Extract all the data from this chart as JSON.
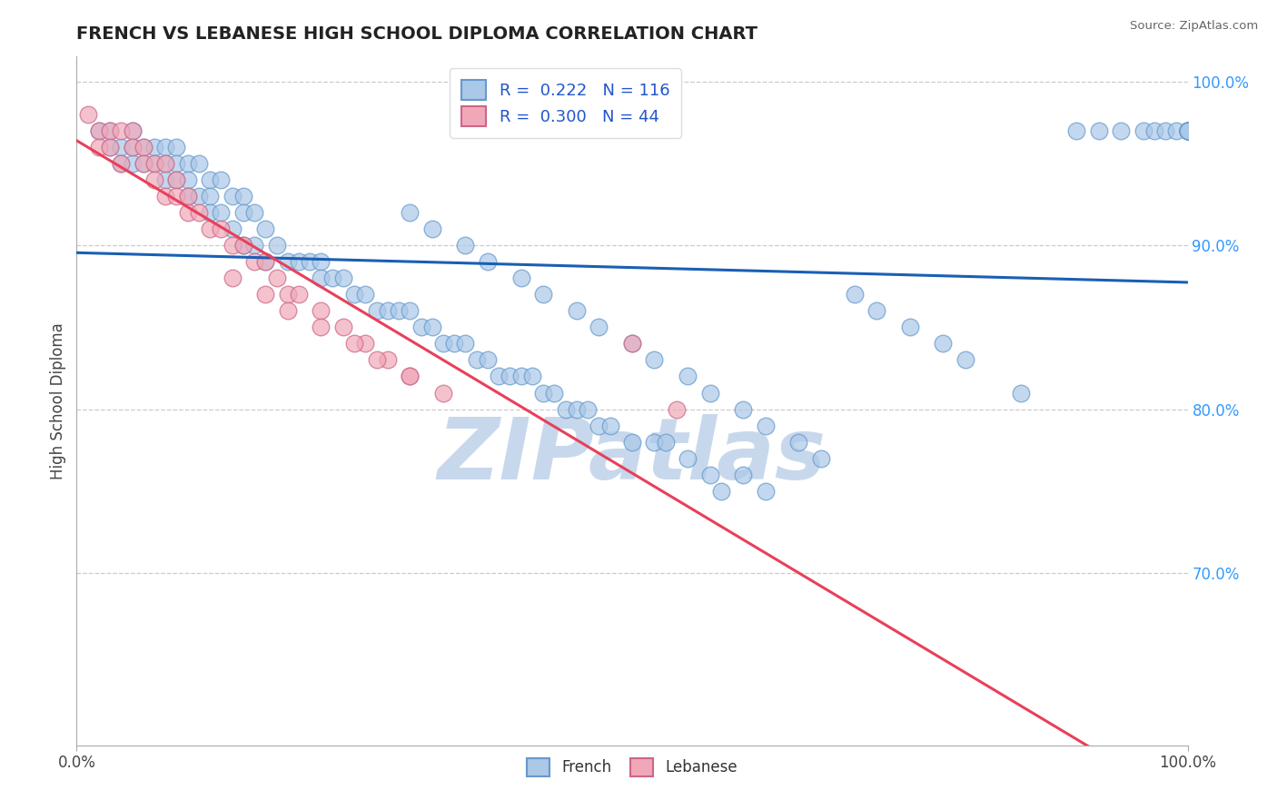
{
  "title": "FRENCH VS LEBANESE HIGH SCHOOL DIPLOMA CORRELATION CHART",
  "source": "Source: ZipAtlas.com",
  "ylabel": "High School Diploma",
  "right_yticks": [
    0.7,
    0.8,
    0.9,
    1.0
  ],
  "right_yticklabels": [
    "70.0%",
    "80.0%",
    "90.0%",
    "100.0%"
  ],
  "xlim": [
    0.0,
    1.0
  ],
  "ylim": [
    0.595,
    1.015
  ],
  "legend_french_R": "0.222",
  "legend_french_N": "116",
  "legend_lebanese_R": "0.300",
  "legend_lebanese_N": "44",
  "french_color": "#aac8e8",
  "lebanese_color": "#f0a8b8",
  "french_line_color": "#1a5fb4",
  "lebanese_line_color": "#e8405a",
  "watermark": "ZIPatlas",
  "watermark_color": "#c8d8ec",
  "french_x": [
    0.02,
    0.03,
    0.03,
    0.04,
    0.04,
    0.05,
    0.05,
    0.05,
    0.06,
    0.06,
    0.07,
    0.07,
    0.08,
    0.08,
    0.08,
    0.09,
    0.09,
    0.09,
    0.1,
    0.1,
    0.1,
    0.11,
    0.11,
    0.12,
    0.12,
    0.12,
    0.13,
    0.13,
    0.14,
    0.14,
    0.15,
    0.15,
    0.15,
    0.16,
    0.16,
    0.17,
    0.17,
    0.18,
    0.19,
    0.2,
    0.21,
    0.22,
    0.22,
    0.23,
    0.24,
    0.25,
    0.26,
    0.27,
    0.28,
    0.29,
    0.3,
    0.31,
    0.32,
    0.33,
    0.34,
    0.35,
    0.36,
    0.37,
    0.38,
    0.39,
    0.4,
    0.41,
    0.42,
    0.43,
    0.44,
    0.45,
    0.46,
    0.47,
    0.48,
    0.5,
    0.52,
    0.53,
    0.55,
    0.57,
    0.58,
    0.6,
    0.62,
    0.3,
    0.32,
    0.35,
    0.37,
    0.4,
    0.42,
    0.45,
    0.47,
    0.5,
    0.52,
    0.55,
    0.57,
    0.6,
    0.62,
    0.65,
    0.67,
    0.7,
    0.72,
    0.75,
    0.78,
    0.8,
    0.85,
    0.9,
    0.92,
    0.94,
    0.96,
    0.97,
    0.98,
    0.99,
    1.0,
    1.0,
    1.0,
    1.0,
    1.0,
    1.0,
    1.0,
    1.0,
    1.0,
    1.0
  ],
  "french_y": [
    0.97,
    0.96,
    0.97,
    0.96,
    0.95,
    0.97,
    0.96,
    0.95,
    0.96,
    0.95,
    0.96,
    0.95,
    0.96,
    0.95,
    0.94,
    0.96,
    0.95,
    0.94,
    0.95,
    0.94,
    0.93,
    0.95,
    0.93,
    0.94,
    0.93,
    0.92,
    0.94,
    0.92,
    0.93,
    0.91,
    0.93,
    0.92,
    0.9,
    0.92,
    0.9,
    0.91,
    0.89,
    0.9,
    0.89,
    0.89,
    0.89,
    0.89,
    0.88,
    0.88,
    0.88,
    0.87,
    0.87,
    0.86,
    0.86,
    0.86,
    0.86,
    0.85,
    0.85,
    0.84,
    0.84,
    0.84,
    0.83,
    0.83,
    0.82,
    0.82,
    0.82,
    0.82,
    0.81,
    0.81,
    0.8,
    0.8,
    0.8,
    0.79,
    0.79,
    0.78,
    0.78,
    0.78,
    0.77,
    0.76,
    0.75,
    0.76,
    0.75,
    0.92,
    0.91,
    0.9,
    0.89,
    0.88,
    0.87,
    0.86,
    0.85,
    0.84,
    0.83,
    0.82,
    0.81,
    0.8,
    0.79,
    0.78,
    0.77,
    0.87,
    0.86,
    0.85,
    0.84,
    0.83,
    0.81,
    0.97,
    0.97,
    0.97,
    0.97,
    0.97,
    0.97,
    0.97,
    0.97,
    0.97,
    0.97,
    0.97,
    0.97,
    0.97,
    0.97,
    0.97,
    0.97,
    0.97
  ],
  "lebanese_x": [
    0.01,
    0.02,
    0.02,
    0.03,
    0.03,
    0.04,
    0.04,
    0.05,
    0.05,
    0.06,
    0.06,
    0.07,
    0.07,
    0.08,
    0.08,
    0.09,
    0.09,
    0.1,
    0.1,
    0.11,
    0.12,
    0.13,
    0.14,
    0.15,
    0.16,
    0.17,
    0.18,
    0.19,
    0.2,
    0.22,
    0.24,
    0.26,
    0.28,
    0.3,
    0.14,
    0.17,
    0.19,
    0.22,
    0.25,
    0.27,
    0.3,
    0.33,
    0.5,
    0.54
  ],
  "lebanese_y": [
    0.98,
    0.97,
    0.96,
    0.97,
    0.96,
    0.97,
    0.95,
    0.97,
    0.96,
    0.96,
    0.95,
    0.95,
    0.94,
    0.95,
    0.93,
    0.94,
    0.93,
    0.93,
    0.92,
    0.92,
    0.91,
    0.91,
    0.9,
    0.9,
    0.89,
    0.89,
    0.88,
    0.87,
    0.87,
    0.86,
    0.85,
    0.84,
    0.83,
    0.82,
    0.88,
    0.87,
    0.86,
    0.85,
    0.84,
    0.83,
    0.82,
    0.81,
    0.84,
    0.8
  ]
}
